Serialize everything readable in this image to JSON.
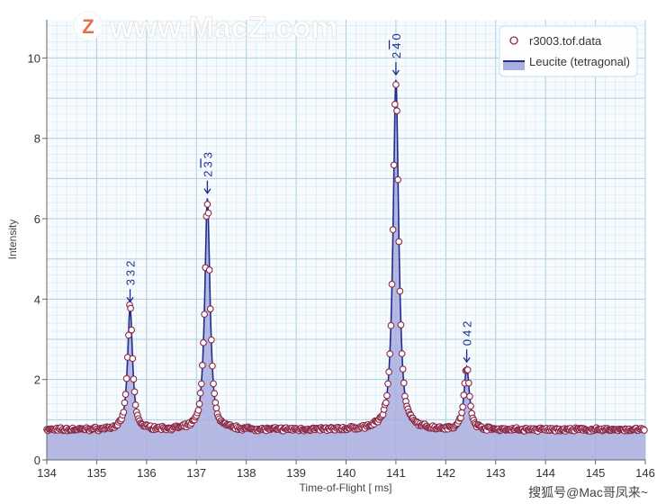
{
  "chart_data": {
    "type": "line",
    "xlabel": "Time-of-Flight [ ms]",
    "ylabel": "Intensity",
    "xlim": [
      134,
      146
    ],
    "ylim": [
      0,
      10.95
    ],
    "xticks": [
      "134",
      "135",
      "136",
      "137",
      "138",
      "139",
      "140",
      "141",
      "142",
      "143",
      "144",
      "145",
      "146"
    ],
    "yticks": [
      "0",
      "2",
      "4",
      "6",
      "8",
      "10"
    ],
    "grid": true,
    "legend_placement": "top-right",
    "series": [
      {
        "name": "r3003.tof.data",
        "kind": "scatter",
        "color": "#8b2846"
      },
      {
        "name": "Leucite (tetragonal)",
        "kind": "line-area",
        "color": "#1f2d8f",
        "fill": "#a9addf"
      }
    ],
    "baseline": 0.75,
    "peaks": [
      {
        "x": 135.67,
        "height": 3.8,
        "label": "3 3 2",
        "label_parts": [
          "3",
          "3",
          "2"
        ],
        "bar_index": -1
      },
      {
        "x": 137.22,
        "height": 6.5,
        "label": "2 -3 3",
        "label_parts": [
          "2",
          "3",
          "3"
        ],
        "bar_index": 1
      },
      {
        "x": 141.0,
        "height": 9.45,
        "label": "2 -4 0",
        "label_parts": [
          "2",
          "4",
          "0"
        ],
        "bar_index": 1
      },
      {
        "x": 142.42,
        "height": 2.3,
        "label": "0 4 2",
        "label_parts": [
          "0",
          "4",
          "2"
        ],
        "bar_index": -1
      }
    ]
  },
  "watermark": {
    "top": "www.MacZ.com",
    "logo": "Z",
    "bottom": "搜狐号@Mac哥凤来~"
  }
}
